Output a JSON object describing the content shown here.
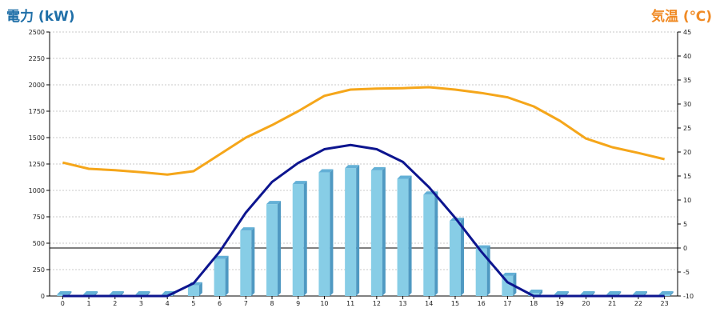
{
  "chart_data": {
    "type": "bar",
    "title": "",
    "xlabel": "",
    "ylabel": "電力 (kW)",
    "y2label": "気温 (℃)",
    "grid": true,
    "categories": [
      "0",
      "1",
      "2",
      "3",
      "4",
      "5",
      "6",
      "7",
      "8",
      "9",
      "10",
      "11",
      "12",
      "13",
      "14",
      "15",
      "16",
      "17",
      "18",
      "19",
      "20",
      "21",
      "22",
      "23"
    ],
    "ylim": [
      0,
      2500
    ],
    "y2lim": [
      -10,
      45
    ],
    "yticks": [
      "0",
      "250",
      "500",
      "750",
      "1000",
      "1250",
      "1500",
      "1750",
      "2000",
      "2250",
      "2500"
    ],
    "y2ticks": [
      "-10",
      "-5",
      "0",
      "5",
      "10",
      "15",
      "20",
      "25",
      "30",
      "35",
      "40",
      "45"
    ],
    "series": [
      {
        "kind": "bar",
        "axis": "left",
        "values": [
          0,
          0,
          0,
          0,
          0,
          100,
          350,
          620,
          870,
          1060,
          1170,
          1210,
          1190,
          1110,
          960,
          710,
          450,
          190,
          30,
          0,
          0,
          0,
          0,
          0
        ]
      },
      {
        "kind": "line",
        "axis": "left",
        "values": [
          0,
          0,
          0,
          0,
          0,
          120,
          420,
          790,
          1080,
          1260,
          1390,
          1430,
          1390,
          1270,
          1030,
          740,
          420,
          130,
          0,
          0,
          0,
          0,
          0,
          0
        ]
      },
      {
        "kind": "line",
        "axis": "right",
        "values": [
          17.8,
          16.5,
          16.2,
          15.8,
          15.3,
          16.0,
          19.5,
          23.0,
          25.6,
          28.5,
          31.7,
          33.0,
          33.2,
          33.3,
          33.5,
          33.0,
          32.3,
          31.4,
          29.5,
          26.5,
          22.8,
          21.0,
          19.8,
          18.5
        ]
      }
    ],
    "colors": {
      "bar_front": "#87cde6",
      "bar_side": "#4f99c2",
      "bar_top": "#63b0d6",
      "power_line": "#0d158f",
      "temp_line": "#f5a61a",
      "left_axis_title": "#1f6fa8",
      "right_axis_title": "#f08a24"
    }
  }
}
